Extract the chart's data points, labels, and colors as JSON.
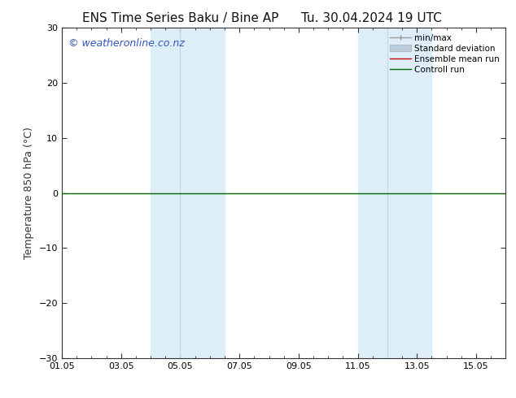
{
  "title_left": "ENS Time Series Baku / Bine AP",
  "title_right": "Tu. 30.04.2024 19 UTC",
  "ylabel": "Temperature 850 hPa (°C)",
  "ylim": [
    -30,
    30
  ],
  "yticks": [
    -30,
    -20,
    -10,
    0,
    10,
    20,
    30
  ],
  "xlim": [
    0,
    15
  ],
  "xtick_labels": [
    "01.05",
    "03.05",
    "05.05",
    "07.05",
    "09.05",
    "11.05",
    "13.05",
    "15.05"
  ],
  "xtick_positions": [
    0,
    2,
    4,
    6,
    8,
    10,
    12,
    14
  ],
  "background_color": "#ffffff",
  "plot_bg_color": "#ffffff",
  "shaded_regions": [
    {
      "x_start": 3.0,
      "x_end": 4.0,
      "color": "#ddeef8"
    },
    {
      "x_start": 4.0,
      "x_end": 5.5,
      "color": "#ddeef8"
    },
    {
      "x_start": 10.0,
      "x_end": 11.0,
      "color": "#ddeef8"
    },
    {
      "x_start": 11.0,
      "x_end": 12.5,
      "color": "#ddeef8"
    }
  ],
  "shaded_bands": [
    {
      "x_start": 3.0,
      "x_end": 5.5,
      "color": "#ddeef8",
      "divider": 4.0
    },
    {
      "x_start": 10.0,
      "x_end": 12.5,
      "color": "#ddeef8",
      "divider": 11.0
    }
  ],
  "watermark_text": "© weatheronline.co.nz",
  "watermark_color": "#3355bb",
  "watermark_fontsize": 9,
  "legend_entries": [
    "min/max",
    "Standard deviation",
    "Ensemble mean run",
    "Controll run"
  ],
  "legend_line_colors": [
    "#999999",
    "#bbccdd",
    "#cc0000",
    "#006600"
  ],
  "zero_line_color": "#006600",
  "zero_line_y": 0,
  "title_fontsize": 11,
  "tick_label_fontsize": 8,
  "ylabel_fontsize": 9,
  "spine_color": "#333333",
  "tick_color": "#333333"
}
